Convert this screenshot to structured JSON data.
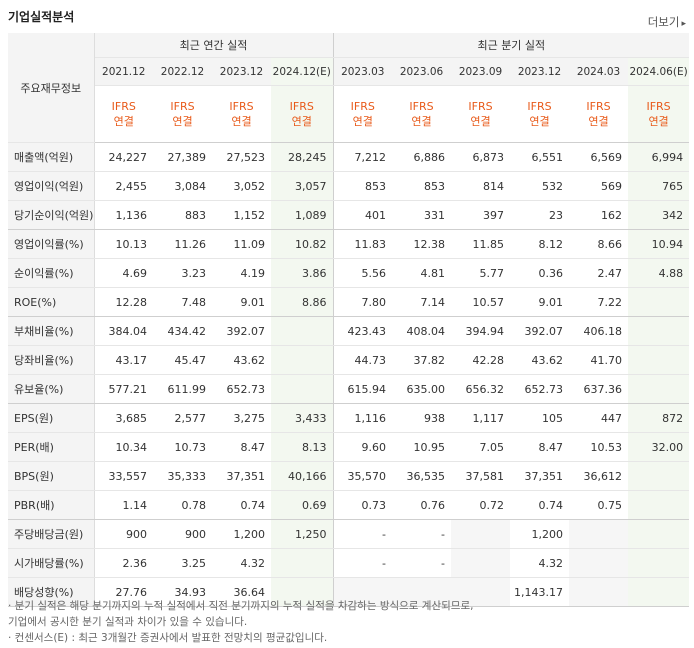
{
  "header": {
    "title": "기업실적분석",
    "more": "더보기"
  },
  "table": {
    "row_header": "주요재무정보",
    "group_annual": "최근 연간 실적",
    "group_quarterly": "최근 분기 실적",
    "periods": [
      {
        "label": "2021.12",
        "est": false
      },
      {
        "label": "2022.12",
        "est": false
      },
      {
        "label": "2023.12",
        "est": false
      },
      {
        "label": "2024.12(E)",
        "est": true
      },
      {
        "label": "2023.03",
        "est": false
      },
      {
        "label": "2023.06",
        "est": false
      },
      {
        "label": "2023.09",
        "est": false
      },
      {
        "label": "2023.12",
        "est": false
      },
      {
        "label": "2024.03",
        "est": false
      },
      {
        "label": "2024.06(E)",
        "est": true
      }
    ],
    "ifrs_top": "IFRS",
    "ifrs_bottom": "연결",
    "rows": [
      {
        "label": "매출액(억원)",
        "values": [
          "24,227",
          "27,389",
          "27,523",
          "28,245",
          "7,212",
          "6,886",
          "6,873",
          "6,551",
          "6,569",
          "6,994"
        ]
      },
      {
        "label": "영업이익(억원)",
        "values": [
          "2,455",
          "3,084",
          "3,052",
          "3,057",
          "853",
          "853",
          "814",
          "532",
          "569",
          "765"
        ]
      },
      {
        "label": "당기순이익(억원)",
        "values": [
          "1,136",
          "883",
          "1,152",
          "1,089",
          "401",
          "331",
          "397",
          "23",
          "162",
          "342"
        ]
      },
      {
        "label": "영업이익률(%)",
        "values": [
          "10.13",
          "11.26",
          "11.09",
          "10.82",
          "11.83",
          "12.38",
          "11.85",
          "8.12",
          "8.66",
          "10.94"
        ]
      },
      {
        "label": "순이익률(%)",
        "values": [
          "4.69",
          "3.23",
          "4.19",
          "3.86",
          "5.56",
          "4.81",
          "5.77",
          "0.36",
          "2.47",
          "4.88"
        ]
      },
      {
        "label": "ROE(%)",
        "values": [
          "12.28",
          "7.48",
          "9.01",
          "8.86",
          "7.80",
          "7.14",
          "10.57",
          "9.01",
          "7.22",
          ""
        ]
      },
      {
        "label": "부채비율(%)",
        "values": [
          "384.04",
          "434.42",
          "392.07",
          "",
          "423.43",
          "408.04",
          "394.94",
          "392.07",
          "406.18",
          ""
        ]
      },
      {
        "label": "당좌비율(%)",
        "values": [
          "43.17",
          "45.47",
          "43.62",
          "",
          "44.73",
          "37.82",
          "42.28",
          "43.62",
          "41.70",
          ""
        ]
      },
      {
        "label": "유보율(%)",
        "values": [
          "577.21",
          "611.99",
          "652.73",
          "",
          "615.94",
          "635.00",
          "656.32",
          "652.73",
          "637.36",
          ""
        ]
      },
      {
        "label": "EPS(원)",
        "values": [
          "3,685",
          "2,577",
          "3,275",
          "3,433",
          "1,116",
          "938",
          "1,117",
          "105",
          "447",
          "872"
        ]
      },
      {
        "label": "PER(배)",
        "values": [
          "10.34",
          "10.73",
          "8.47",
          "8.13",
          "9.60",
          "10.95",
          "7.05",
          "8.47",
          "10.53",
          "32.00"
        ]
      },
      {
        "label": "BPS(원)",
        "values": [
          "33,557",
          "35,333",
          "37,351",
          "40,166",
          "35,570",
          "36,535",
          "37,581",
          "37,351",
          "36,612",
          ""
        ]
      },
      {
        "label": "PBR(배)",
        "values": [
          "1.14",
          "0.78",
          "0.74",
          "0.69",
          "0.73",
          "0.76",
          "0.72",
          "0.74",
          "0.75",
          ""
        ]
      },
      {
        "label": "주당배당금(원)",
        "values": [
          "900",
          "900",
          "1,200",
          "1,250",
          "-",
          "-",
          "",
          "1,200",
          "",
          ""
        ]
      },
      {
        "label": "시가배당률(%)",
        "values": [
          "2.36",
          "3.25",
          "4.32",
          "",
          "-",
          "-",
          "",
          "4.32",
          "",
          ""
        ]
      },
      {
        "label": "배당성향(%)",
        "values": [
          "27.76",
          "34.93",
          "36.64",
          "",
          "",
          "",
          "",
          "1,143.17",
          "",
          ""
        ]
      }
    ]
  },
  "notes": [
    "· 분기 실적은 해당 분기까지의 누적 실적에서 직전 분기까지의 누적 실적을 차감하는 방식으로 계산되므로,",
    "   기업에서 공시한 분기 실적과 차이가 있을 수 있습니다.",
    "· 컨센서스(E) : 최근 3개월간 증권사에서 발표한 전망치의 평균값입니다."
  ]
}
